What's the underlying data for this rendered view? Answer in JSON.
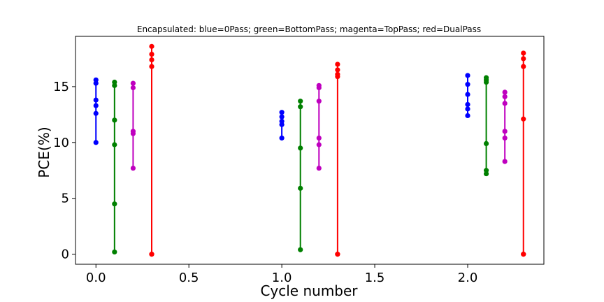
{
  "chart_data": {
    "type": "scatter",
    "title": "Encapsulated: blue=0Pass; green=BottomPass; magenta=TopPass; red=DualPass",
    "xlabel": "Cycle number",
    "ylabel": "PCE(%)",
    "xlim": [
      -0.11,
      2.41
    ],
    "ylim": [
      -0.9,
      19.5
    ],
    "xticks": [
      0.0,
      0.5,
      1.0,
      1.5,
      2.0
    ],
    "xtick_labels": [
      "0.0",
      "0.5",
      "1.0",
      "1.5",
      "2.0"
    ],
    "yticks": [
      0,
      5,
      10,
      15
    ],
    "ytick_labels": [
      "0",
      "5",
      "10",
      "15"
    ],
    "grid": false,
    "series": [
      {
        "color": "#0000ff",
        "groups": [
          {
            "x": 0.0,
            "y": [
              15.6,
              15.3,
              13.8,
              13.3,
              12.6,
              10.0
            ]
          },
          {
            "x": 1.0,
            "y": [
              12.7,
              12.3,
              11.9,
              11.6,
              10.4
            ]
          },
          {
            "x": 2.0,
            "y": [
              16.0,
              15.2,
              14.3,
              13.4,
              13.0,
              12.4
            ]
          }
        ]
      },
      {
        "color": "#008000",
        "groups": [
          {
            "x": 0.1,
            "y": [
              15.4,
              15.1,
              12.0,
              9.8,
              4.5,
              0.2
            ]
          },
          {
            "x": 1.1,
            "y": [
              13.7,
              13.2,
              9.5,
              5.9,
              0.4
            ]
          },
          {
            "x": 2.1,
            "y": [
              15.8,
              15.6,
              15.4,
              9.9,
              7.5,
              7.2
            ]
          }
        ]
      },
      {
        "color": "#bf00bf",
        "groups": [
          {
            "x": 0.2,
            "y": [
              15.3,
              14.9,
              11.0,
              10.8,
              7.7
            ]
          },
          {
            "x": 1.2,
            "y": [
              15.1,
              14.9,
              13.7,
              10.4,
              9.8,
              7.7
            ]
          },
          {
            "x": 2.2,
            "y": [
              14.5,
              14.1,
              13.5,
              11.0,
              10.4,
              8.3
            ]
          }
        ]
      },
      {
        "color": "#ff0000",
        "groups": [
          {
            "x": 0.3,
            "y": [
              18.6,
              17.9,
              17.4,
              16.8,
              0.0,
              0.0
            ]
          },
          {
            "x": 1.3,
            "y": [
              17.0,
              16.5,
              16.1,
              15.9,
              0.0,
              0.0
            ]
          },
          {
            "x": 2.3,
            "y": [
              18.0,
              17.5,
              16.8,
              12.1,
              0.0,
              0.0
            ]
          }
        ]
      }
    ]
  }
}
